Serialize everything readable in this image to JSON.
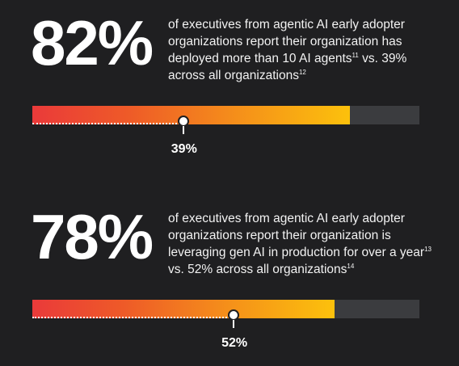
{
  "chart_data": [
    {
      "type": "bar",
      "headline": "82%",
      "description": "of executives from agentic AI early adopter organizations report their organization has deployed more than 10 AI agents",
      "footnote_a": "11",
      "description_tail": " vs. 39% across all organizations",
      "footnote_b": "12",
      "early_adopter_value": 82,
      "all_orgs_value": 39,
      "all_orgs_label": "39%",
      "xlim": [
        0,
        100
      ],
      "colors": {
        "gradient_start": "#ea3a3a",
        "gradient_end": "#fcc10c",
        "track": "#3b3c3f"
      }
    },
    {
      "type": "bar",
      "headline": "78%",
      "description": "of executives from agentic AI early adopter organizations report their organization is leveraging gen AI in production for over a year",
      "footnote_a": "13",
      "description_tail": " vs. 52% across all organizations",
      "footnote_b": "14",
      "early_adopter_value": 78,
      "all_orgs_value": 52,
      "all_orgs_label": "52%",
      "xlim": [
        0,
        100
      ],
      "colors": {
        "gradient_start": "#ea3a3a",
        "gradient_end": "#fcc10c",
        "track": "#3b3c3f"
      }
    }
  ]
}
